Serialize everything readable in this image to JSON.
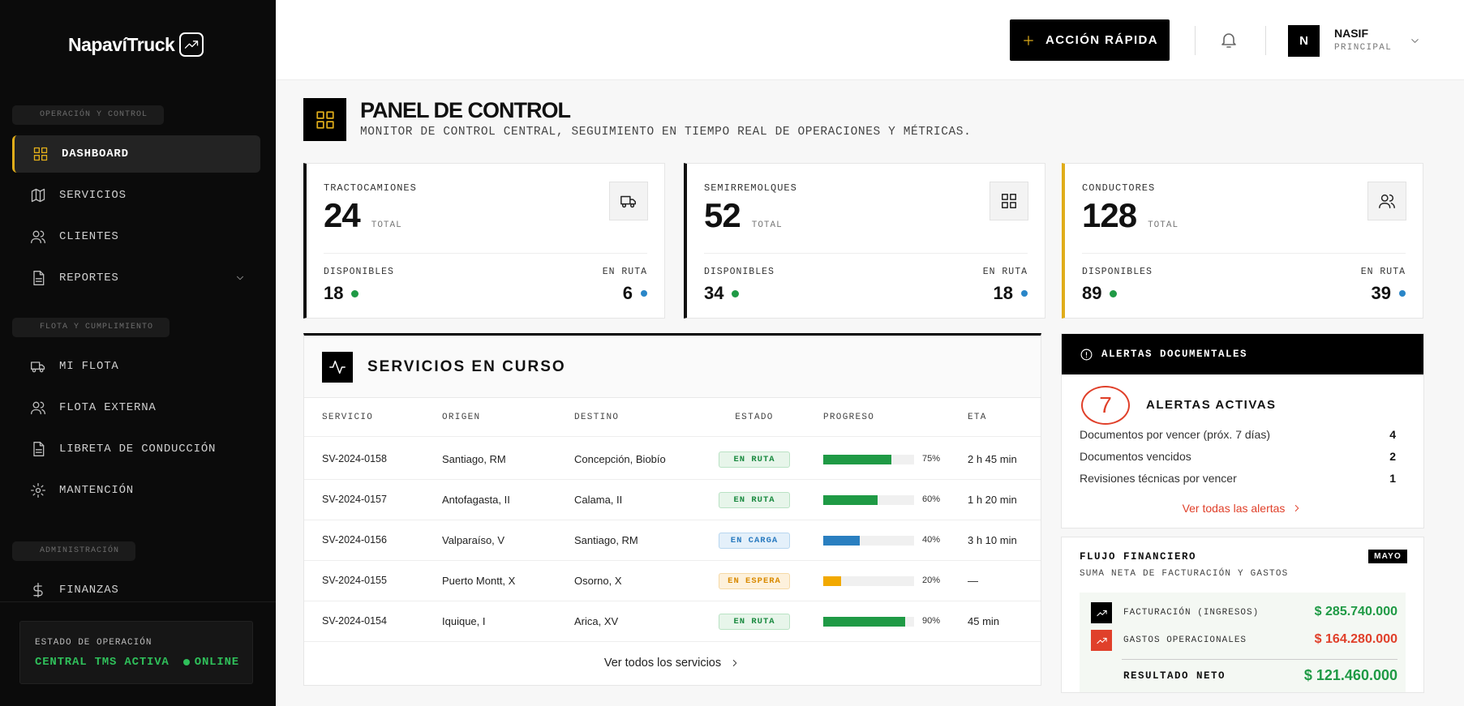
{
  "sidebar": {
    "brand": "NapavíTruck",
    "sections": [
      {
        "label": "OPERACIÓN Y CONTROL",
        "items": [
          "DASHBOARD",
          "SERVICIOS",
          "CLIENTES",
          "REPORTES"
        ]
      },
      {
        "label": "FLOTA Y CUMPLIMIENTO",
        "items": [
          "MI FLOTA",
          "FLOTA EXTERNA",
          "LIBRETA DE CONDUCCIÓN",
          "MANTENCIÓN"
        ]
      },
      {
        "label": "ADMINISTRACIÓN",
        "items": [
          "FINANZAS"
        ]
      }
    ],
    "status": {
      "label": "ESTADO DE OPERACIÓN",
      "value": "CENTRAL TMS ACTIVA",
      "badge": "ONLINE"
    }
  },
  "header": {
    "action": "ACCIÓN RÁPIDA",
    "user": {
      "initial": "N",
      "name": "NASIF",
      "role": "PRINCIPAL"
    }
  },
  "page": {
    "title": "PANEL DE CONTROL",
    "subtitle": "MONITOR DE CONTROL CENTRAL, SEGUIMIENTO EN TIEMPO REAL DE OPERACIONES Y MÉTRICAS."
  },
  "kpis": [
    {
      "label": "TRACTOCAMIONES",
      "total": 24,
      "total_label": "TOTAL",
      "available_label": "DISPONIBLES",
      "available": 18,
      "route_label": "EN RUTA",
      "route": 6,
      "accent": "#111111"
    },
    {
      "label": "SEMIRREMOLQUES",
      "total": 52,
      "total_label": "TOTAL",
      "available_label": "DISPONIBLES",
      "available": 34,
      "route_label": "EN RUTA",
      "route": 18,
      "accent": "#111111"
    },
    {
      "label": "CONDUCTORES",
      "total": 128,
      "total_label": "TOTAL",
      "available_label": "DISPONIBLES",
      "available": 89,
      "route_label": "EN RUTA",
      "route": 39,
      "accent": "#e0ad1a"
    }
  ],
  "services": {
    "title": "SERVICIOS EN CURSO",
    "columns": [
      "SERVICIO",
      "ORIGEN",
      "DESTINO",
      "ESTADO",
      "PROGRESO",
      "ETA"
    ],
    "rows": [
      {
        "id": "SV-2024-0158",
        "origin": "Santiago, RM",
        "destination": "Concepción, Biobío",
        "status": "EN RUTA",
        "progress": 75,
        "progress_label": "75%",
        "eta": "2 h 45 min",
        "color": "#1f9a45"
      },
      {
        "id": "SV-2024-0157",
        "origin": "Antofagasta, II",
        "destination": "Calama, II",
        "status": "EN RUTA",
        "progress": 60,
        "progress_label": "60%",
        "eta": "1 h 20 min",
        "color": "#1f9a45"
      },
      {
        "id": "SV-2024-0156",
        "origin": "Valparaíso, V",
        "destination": "Santiago, RM",
        "status": "EN CARGA",
        "progress": 40,
        "progress_label": "40%",
        "eta": "3 h 10 min",
        "color": "#2a7fc0"
      },
      {
        "id": "SV-2024-0155",
        "origin": "Puerto Montt, X",
        "destination": "Osorno, X",
        "status": "EN ESPERA",
        "progress": 20,
        "progress_label": "20%",
        "eta": "—",
        "color": "#f2a900"
      },
      {
        "id": "SV-2024-0154",
        "origin": "Iquique, I",
        "destination": "Arica, XV",
        "status": "EN RUTA",
        "progress": 90,
        "progress_label": "90%",
        "eta": "45 min",
        "color": "#1f9a45"
      }
    ],
    "link": "Ver todos los servicios"
  },
  "alerts": {
    "header": "ALERTAS DOCUMENTALES",
    "count": 7,
    "title": "ALERTAS ACTIVAS",
    "items": [
      {
        "label": "Documentos por vencer (próx. 7 días)",
        "value": 4
      },
      {
        "label": "Documentos vencidos",
        "value": 2
      },
      {
        "label": "Revisiones técnicas por vencer",
        "value": 1
      }
    ],
    "link": "Ver todas las alertas"
  },
  "finance": {
    "title": "FLUJO FINANCIERO",
    "badge": "MAYO",
    "subtitle": "SUMA NETA DE FACTURACIÓN Y GASTOS",
    "rows": [
      {
        "label": "FACTURACIÓN (INGRESOS)",
        "value": "$ 285.740.000",
        "color": "#1f9a45"
      },
      {
        "label": "GASTOS OPERACIONALES",
        "value": "$ 164.280.000",
        "color": "#e0402a"
      }
    ],
    "net_label": "RESULTADO NETO",
    "net_value": "$ 121.460.000"
  }
}
